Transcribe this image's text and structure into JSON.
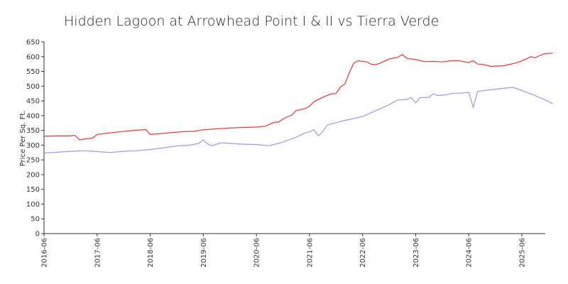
{
  "chart_data": {
    "type": "line",
    "title": "Hidden Lagoon at Arrowhead Point I & II vs Tierra Verde",
    "xlabel": "",
    "ylabel": "Price Per Sq. Ft.",
    "xlim": [
      "2016-06",
      "2025-11"
    ],
    "ylim": [
      0,
      650
    ],
    "y_ticks": [
      0,
      50,
      100,
      150,
      200,
      250,
      300,
      350,
      400,
      450,
      500,
      550,
      600,
      650
    ],
    "x_ticks": [
      "2016-06",
      "2017-06",
      "2018-06",
      "2019-06",
      "2020-06",
      "2021-06",
      "2022-06",
      "2023-06",
      "2024-06",
      "2025-06"
    ],
    "grid": false,
    "legend": "none",
    "series": [
      {
        "color": "#ee3333",
        "points": [
          [
            "2016-06",
            330
          ],
          [
            "2016-09",
            331
          ],
          [
            "2016-12",
            331
          ],
          [
            "2017-01",
            333
          ],
          [
            "2017-02",
            318
          ],
          [
            "2017-04",
            322
          ],
          [
            "2017-05",
            324
          ],
          [
            "2017-06",
            336
          ],
          [
            "2017-08",
            340
          ],
          [
            "2017-11",
            345
          ],
          [
            "2018-02",
            349
          ],
          [
            "2018-05",
            353
          ],
          [
            "2018-06",
            336
          ],
          [
            "2018-09",
            340
          ],
          [
            "2018-12",
            344
          ],
          [
            "2019-02",
            346
          ],
          [
            "2019-04",
            347
          ],
          [
            "2019-06",
            352
          ],
          [
            "2019-09",
            355
          ],
          [
            "2019-12",
            358
          ],
          [
            "2020-03",
            360
          ],
          [
            "2020-06",
            361
          ],
          [
            "2020-08",
            364
          ],
          [
            "2020-10",
            377
          ],
          [
            "2020-11",
            378
          ],
          [
            "2020-12",
            388
          ],
          [
            "2021-01",
            396
          ],
          [
            "2021-02",
            402
          ],
          [
            "2021-03",
            417
          ],
          [
            "2021-05",
            424
          ],
          [
            "2021-06",
            432
          ],
          [
            "2021-07",
            447
          ],
          [
            "2021-09",
            462
          ],
          [
            "2021-11",
            474
          ],
          [
            "2021-12",
            475
          ],
          [
            "2022-01",
            497
          ],
          [
            "2022-02",
            507
          ],
          [
            "2022-03",
            545
          ],
          [
            "2022-04",
            578
          ],
          [
            "2022-05",
            586
          ],
          [
            "2022-07",
            582
          ],
          [
            "2022-08",
            574
          ],
          [
            "2022-09",
            573
          ],
          [
            "2022-10",
            578
          ],
          [
            "2022-12",
            592
          ],
          [
            "2023-02",
            598
          ],
          [
            "2023-03",
            607
          ],
          [
            "2023-04",
            594
          ],
          [
            "2023-06",
            590
          ],
          [
            "2023-08",
            583
          ],
          [
            "2023-10",
            584
          ],
          [
            "2023-12",
            582
          ],
          [
            "2024-02",
            586
          ],
          [
            "2024-04",
            586
          ],
          [
            "2024-05",
            582
          ],
          [
            "2024-06",
            580
          ],
          [
            "2024-07",
            586
          ],
          [
            "2024-08",
            575
          ],
          [
            "2024-09",
            574
          ],
          [
            "2024-11",
            567
          ],
          [
            "2025-02",
            569
          ],
          [
            "2025-05",
            580
          ],
          [
            "2025-07",
            592
          ],
          [
            "2025-08",
            600
          ],
          [
            "2025-09",
            596
          ],
          [
            "2025-10",
            603
          ],
          [
            "2025-11",
            609
          ],
          [
            "2026-01",
            612
          ]
        ]
      },
      {
        "color": "#9999ee",
        "points": [
          [
            "2016-06",
            273
          ],
          [
            "2016-09",
            276
          ],
          [
            "2016-12",
            279
          ],
          [
            "2017-03",
            281
          ],
          [
            "2017-06",
            278
          ],
          [
            "2017-09",
            275
          ],
          [
            "2017-12",
            279
          ],
          [
            "2018-03",
            281
          ],
          [
            "2018-06",
            285
          ],
          [
            "2018-09",
            291
          ],
          [
            "2018-12",
            297
          ],
          [
            "2019-03",
            300
          ],
          [
            "2019-05",
            306
          ],
          [
            "2019-06",
            318
          ],
          [
            "2019-07",
            303
          ],
          [
            "2019-08",
            298
          ],
          [
            "2019-10",
            308
          ],
          [
            "2019-12",
            306
          ],
          [
            "2020-03",
            303
          ],
          [
            "2020-06",
            302
          ],
          [
            "2020-09",
            298
          ],
          [
            "2020-12",
            310
          ],
          [
            "2021-03",
            327
          ],
          [
            "2021-05",
            341
          ],
          [
            "2021-06",
            345
          ],
          [
            "2021-07",
            352
          ],
          [
            "2021-08",
            331
          ],
          [
            "2021-09",
            346
          ],
          [
            "2021-10",
            368
          ],
          [
            "2021-12",
            376
          ],
          [
            "2022-02",
            384
          ],
          [
            "2022-04",
            390
          ],
          [
            "2022-06",
            397
          ],
          [
            "2022-09",
            417
          ],
          [
            "2022-12",
            437
          ],
          [
            "2023-02",
            453
          ],
          [
            "2023-04",
            455
          ],
          [
            "2023-05",
            461
          ],
          [
            "2023-06",
            443
          ],
          [
            "2023-07",
            461
          ],
          [
            "2023-09",
            462
          ],
          [
            "2023-10",
            474
          ],
          [
            "2023-11",
            468
          ],
          [
            "2024-01",
            471
          ],
          [
            "2024-02",
            475
          ],
          [
            "2024-04",
            476
          ],
          [
            "2024-06",
            479
          ],
          [
            "2024-07",
            428
          ],
          [
            "2024-08",
            482
          ],
          [
            "2024-10",
            486
          ],
          [
            "2025-01",
            491
          ],
          [
            "2025-04",
            496
          ],
          [
            "2025-06",
            485
          ],
          [
            "2025-09",
            468
          ],
          [
            "2025-11",
            455
          ],
          [
            "2026-01",
            440
          ]
        ]
      }
    ]
  }
}
